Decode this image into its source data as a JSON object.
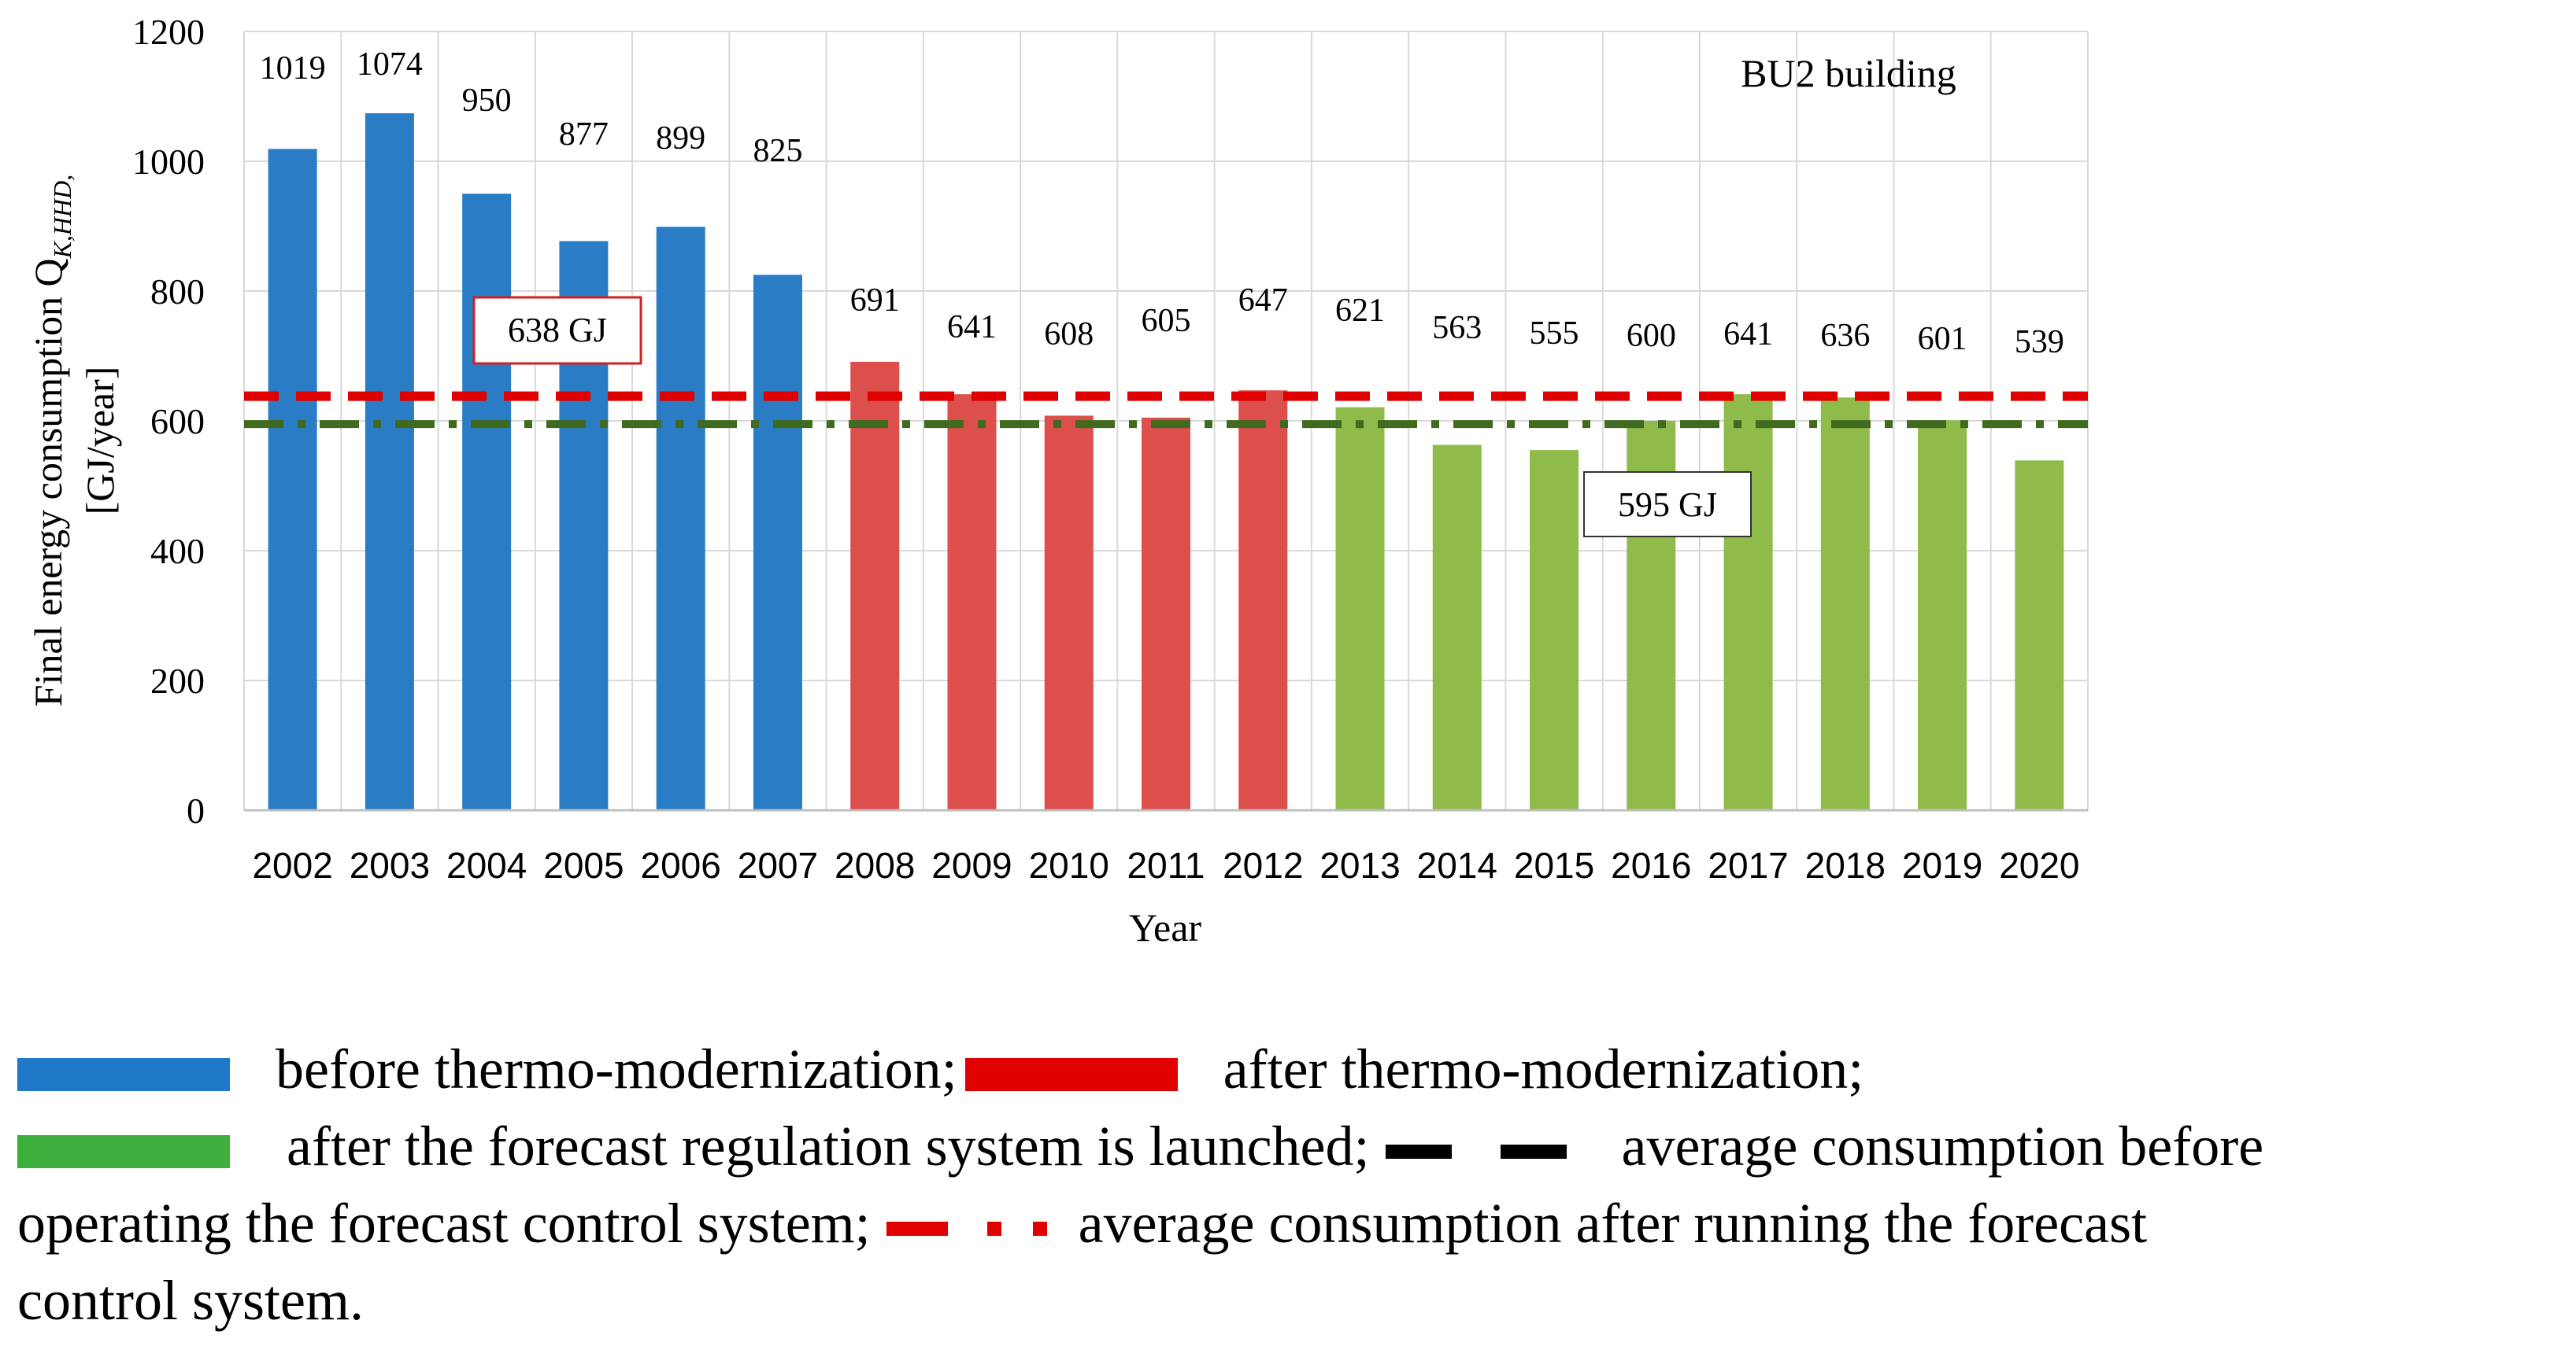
{
  "chart_data": {
    "type": "bar",
    "title": "BU2 building",
    "xlabel": "Year",
    "ylabel_line1": "Final energy consumption Q",
    "ylabel_subscript": "K,HHD,",
    "ylabel_line2": "[GJ/year]",
    "ylim": [
      0,
      1200
    ],
    "yticks": [
      0,
      200,
      400,
      600,
      800,
      1000,
      1200
    ],
    "grid": true,
    "categories": [
      "2002",
      "2003",
      "2004",
      "2005",
      "2006",
      "2007",
      "2008",
      "2009",
      "2010",
      "2011",
      "2012",
      "2013",
      "2014",
      "2015",
      "2016",
      "2017",
      "2018",
      "2019",
      "2020"
    ],
    "values": [
      1019,
      1074,
      950,
      877,
      899,
      825,
      691,
      641,
      608,
      605,
      647,
      621,
      563,
      555,
      600,
      641,
      636,
      601,
      539
    ],
    "groups": [
      "before",
      "before",
      "before",
      "before",
      "before",
      "before",
      "after",
      "after",
      "after",
      "after",
      "after",
      "forecast",
      "forecast",
      "forecast",
      "forecast",
      "forecast",
      "forecast",
      "forecast",
      "forecast"
    ],
    "reference_lines": [
      {
        "name": "average consumption before operating the forecast control system",
        "value": 638,
        "label": "638 GJ",
        "color": "#e00000",
        "style": "dashed"
      },
      {
        "name": "average consumption after running the forecast control system",
        "value": 595,
        "label": "595 GJ",
        "color": "#3f6a1f",
        "style": "dash-dot"
      }
    ]
  },
  "colors": {
    "before": "#2a7dc4",
    "after": "#dc4f4c",
    "forecast": "#8fbb4b",
    "legend_blue": "#1f78c8",
    "legend_red": "#e00000",
    "legend_green": "#3caf3c",
    "grid": "#d9d9d9"
  },
  "legend": {
    "before": "before thermo-modernization;",
    "after": "after thermo-modernization;",
    "forecast": "after the forecast regulation system is launched;",
    "avg_before_a": "average consumption before",
    "avg_before_b": "operating the forecast control system;",
    "avg_after_a": "average consumption after running the forecast",
    "avg_after_b": "control system."
  }
}
